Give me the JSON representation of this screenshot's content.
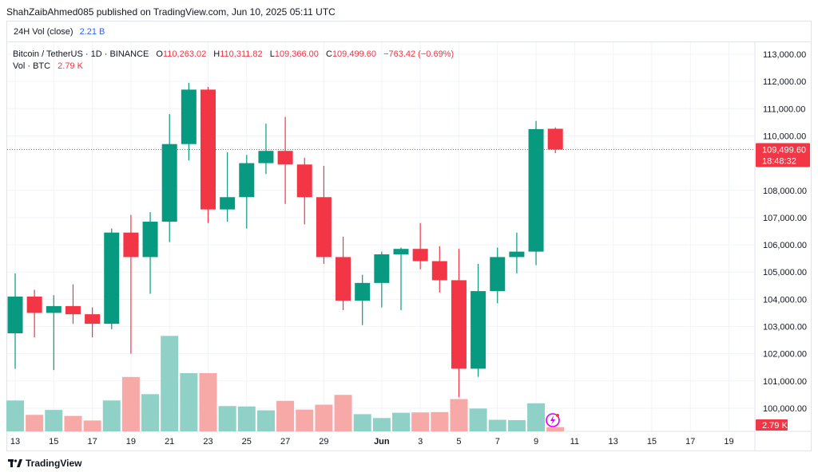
{
  "header": {
    "text": "ShahZaibAhmed085 published on TradingView.com, Jun 10, 2025 05:11 UTC"
  },
  "vol24": {
    "label": "24H Vol (close)",
    "value": "2.21 B"
  },
  "legend": {
    "symbol": "Bitcoin / TetherUS · 1D · BINANCE",
    "o_key": "O",
    "o": "110,263.02",
    "h_key": "H",
    "h": "110,311.82",
    "l_key": "L",
    "l": "109,366.00",
    "c_key": "C",
    "c": "109,499.60",
    "change": "−763.42 (−0.69%)",
    "vol_label": "Vol · BTC",
    "vol_value": "2.79 K"
  },
  "price_tag": {
    "price": "109,499.60",
    "countdown": "18:48:32"
  },
  "vol_tag": {
    "value": "2.79 K"
  },
  "footer": {
    "brand": "TradingView"
  },
  "colors": {
    "up": "#089981",
    "down": "#f23645",
    "up_vol": "#8fd0c7",
    "down_vol": "#f7a9a7",
    "grid": "#f0f3fa"
  },
  "chart_data": {
    "type": "candlestick",
    "y_ticks": [
      "113,000.00",
      "112,000.00",
      "111,000.00",
      "110,000.00",
      "108,000.00",
      "107,000.00",
      "106,000.00",
      "105,000.00",
      "104,000.00",
      "103,000.00",
      "102,000.00",
      "101,000.00",
      "100,000.00"
    ],
    "x_ticks": [
      {
        "label": "13",
        "day": 0
      },
      {
        "label": "15",
        "day": 2
      },
      {
        "label": "17",
        "day": 4
      },
      {
        "label": "19",
        "day": 6
      },
      {
        "label": "21",
        "day": 8
      },
      {
        "label": "23",
        "day": 10
      },
      {
        "label": "25",
        "day": 12
      },
      {
        "label": "27",
        "day": 14
      },
      {
        "label": "29",
        "day": 16
      },
      {
        "label": "Jun",
        "day": 19
      },
      {
        "label": "3",
        "day": 21
      },
      {
        "label": "5",
        "day": 23
      },
      {
        "label": "7",
        "day": 25
      },
      {
        "label": "9",
        "day": 27
      },
      {
        "label": "11",
        "day": 29
      },
      {
        "label": "13",
        "day": 31
      },
      {
        "label": "15",
        "day": 33
      },
      {
        "label": "17",
        "day": 35
      },
      {
        "label": "19",
        "day": 37
      }
    ],
    "candles": [
      {
        "o": 102750,
        "h": 104950,
        "l": 101450,
        "c": 104100,
        "v": 0.88
      },
      {
        "o": 104100,
        "h": 104350,
        "l": 102600,
        "c": 103500,
        "v": 0.47
      },
      {
        "o": 103500,
        "h": 104150,
        "l": 101400,
        "c": 103750,
        "v": 0.61
      },
      {
        "o": 103750,
        "h": 104550,
        "l": 103100,
        "c": 103450,
        "v": 0.44
      },
      {
        "o": 103450,
        "h": 103700,
        "l": 102600,
        "c": 103100,
        "v": 0.31
      },
      {
        "o": 103100,
        "h": 106600,
        "l": 102900,
        "c": 106450,
        "v": 0.88
      },
      {
        "o": 106450,
        "h": 107100,
        "l": 102000,
        "c": 105550,
        "v": 1.55
      },
      {
        "o": 105550,
        "h": 107200,
        "l": 104200,
        "c": 106850,
        "v": 1.06
      },
      {
        "o": 106850,
        "h": 110800,
        "l": 106100,
        "c": 109700,
        "v": 2.72
      },
      {
        "o": 109700,
        "h": 111950,
        "l": 109100,
        "c": 111700,
        "v": 1.66
      },
      {
        "o": 111700,
        "h": 111800,
        "l": 106800,
        "c": 107300,
        "v": 1.66
      },
      {
        "o": 107300,
        "h": 109400,
        "l": 106850,
        "c": 107750,
        "v": 0.72
      },
      {
        "o": 107750,
        "h": 109300,
        "l": 106600,
        "c": 109000,
        "v": 0.71
      },
      {
        "o": 109000,
        "h": 110450,
        "l": 108600,
        "c": 109450,
        "v": 0.6
      },
      {
        "o": 109450,
        "h": 110700,
        "l": 107500,
        "c": 108950,
        "v": 0.87
      },
      {
        "o": 108950,
        "h": 109200,
        "l": 106750,
        "c": 107750,
        "v": 0.62
      },
      {
        "o": 107750,
        "h": 108900,
        "l": 105300,
        "c": 105550,
        "v": 0.76
      },
      {
        "o": 105550,
        "h": 106300,
        "l": 103600,
        "c": 103950,
        "v": 1.04
      },
      {
        "o": 103950,
        "h": 104900,
        "l": 103050,
        "c": 104600,
        "v": 0.49
      },
      {
        "o": 104600,
        "h": 105750,
        "l": 103700,
        "c": 105650,
        "v": 0.38
      },
      {
        "o": 105650,
        "h": 105900,
        "l": 103600,
        "c": 105850,
        "v": 0.53
      },
      {
        "o": 105850,
        "h": 106800,
        "l": 105100,
        "c": 105400,
        "v": 0.54
      },
      {
        "o": 105400,
        "h": 105950,
        "l": 104250,
        "c": 104700,
        "v": 0.55
      },
      {
        "o": 104700,
        "h": 105850,
        "l": 100400,
        "c": 101450,
        "v": 0.92
      },
      {
        "o": 101450,
        "h": 105300,
        "l": 101150,
        "c": 104300,
        "v": 0.65
      },
      {
        "o": 104300,
        "h": 105900,
        "l": 103850,
        "c": 105550,
        "v": 0.33
      },
      {
        "o": 105550,
        "h": 106450,
        "l": 104950,
        "c": 105750,
        "v": 0.32
      },
      {
        "o": 105750,
        "h": 110550,
        "l": 105250,
        "c": 110250,
        "v": 0.8
      },
      {
        "o": 110263.02,
        "h": 110311.82,
        "l": 109366.0,
        "c": 109499.6,
        "v": 0.12
      }
    ]
  }
}
